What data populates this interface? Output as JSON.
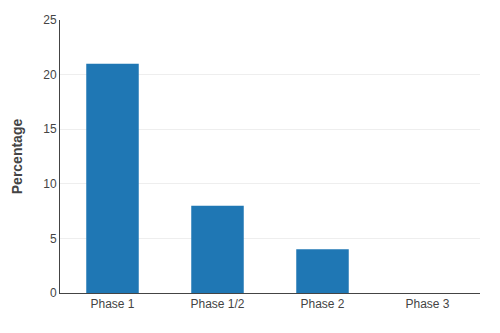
{
  "chart_data": {
    "type": "bar",
    "categories": [
      "Phase 1",
      "Phase 1/2",
      "Phase 2",
      "Phase 3"
    ],
    "values": [
      21,
      8,
      4,
      0
    ],
    "ylabel": "Percentage",
    "ylim": [
      0,
      25
    ],
    "yticks": [
      0,
      5,
      10,
      15,
      20,
      25
    ],
    "grid": true
  }
}
